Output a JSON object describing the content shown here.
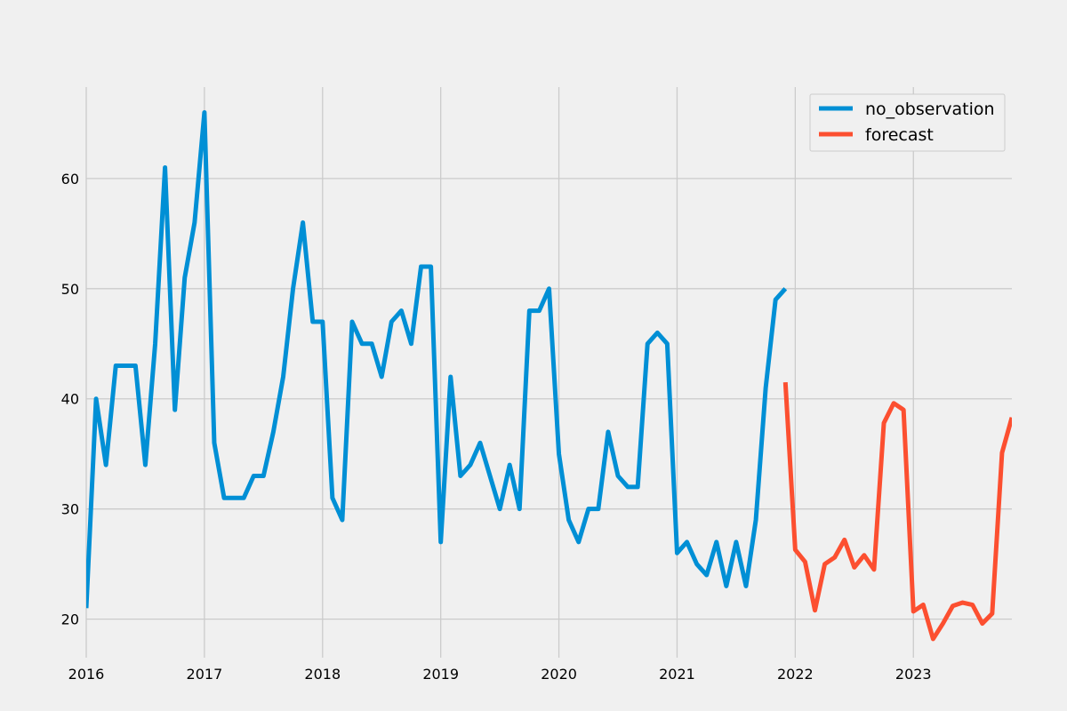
{
  "chart_data": {
    "type": "line",
    "title": "",
    "xlabel": "",
    "ylabel": "",
    "x_axis": {
      "type": "date",
      "range": [
        "2016-01",
        "2023-11"
      ],
      "ticks": [
        "2016",
        "2017",
        "2018",
        "2019",
        "2020",
        "2021",
        "2022",
        "2023"
      ]
    },
    "y_axis": {
      "range": [
        16.5,
        68.3
      ],
      "ticks": [
        20,
        30,
        40,
        50,
        60
      ]
    },
    "grid": true,
    "legend": {
      "position": "top-right",
      "entries": [
        "no_observation",
        "forecast"
      ]
    },
    "series": [
      {
        "name": "no_observation",
        "color": "#008fd5",
        "x": [
          "2016-01",
          "2016-02",
          "2016-03",
          "2016-04",
          "2016-05",
          "2016-06",
          "2016-07",
          "2016-08",
          "2016-09",
          "2016-10",
          "2016-11",
          "2016-12",
          "2017-01",
          "2017-02",
          "2017-03",
          "2017-04",
          "2017-05",
          "2017-06",
          "2017-07",
          "2017-08",
          "2017-09",
          "2017-10",
          "2017-11",
          "2017-12",
          "2018-01",
          "2018-02",
          "2018-03",
          "2018-04",
          "2018-05",
          "2018-06",
          "2018-07",
          "2018-08",
          "2018-09",
          "2018-10",
          "2018-11",
          "2018-12",
          "2019-01",
          "2019-02",
          "2019-03",
          "2019-04",
          "2019-05",
          "2019-06",
          "2019-07",
          "2019-08",
          "2019-09",
          "2019-10",
          "2019-11",
          "2019-12",
          "2020-01",
          "2020-02",
          "2020-03",
          "2020-04",
          "2020-05",
          "2020-06",
          "2020-07",
          "2020-08",
          "2020-09",
          "2020-10",
          "2020-11",
          "2020-12",
          "2021-01",
          "2021-02",
          "2021-03",
          "2021-04",
          "2021-05",
          "2021-06",
          "2021-07",
          "2021-08",
          "2021-09",
          "2021-10",
          "2021-11",
          "2021-12"
        ],
        "values": [
          21,
          40,
          34,
          43,
          43,
          43,
          34,
          45,
          61,
          39,
          51,
          56,
          66,
          36,
          31,
          31,
          31,
          33,
          33,
          37,
          42,
          50,
          56,
          47,
          47,
          31,
          29,
          47,
          45,
          45,
          42,
          47,
          48,
          45,
          52,
          52,
          27,
          42,
          33,
          34,
          36,
          33,
          30,
          34,
          30,
          48,
          48,
          50,
          35,
          29,
          27,
          30,
          30,
          37,
          33,
          32,
          32,
          45,
          46,
          45,
          26,
          27,
          25,
          24,
          27,
          23,
          27,
          23,
          29,
          41,
          49,
          50
        ]
      },
      {
        "name": "forecast",
        "color": "#fc4f30",
        "x": [
          "2021-12",
          "2022-01",
          "2022-02",
          "2022-03",
          "2022-04",
          "2022-05",
          "2022-06",
          "2022-07",
          "2022-08",
          "2022-09",
          "2022-10",
          "2022-11",
          "2022-12",
          "2023-01",
          "2023-02",
          "2023-03",
          "2023-04",
          "2023-05",
          "2023-06",
          "2023-07",
          "2023-08",
          "2023-09",
          "2023-10",
          "2023-11"
        ],
        "values": [
          41.5,
          26.3,
          25.2,
          20.8,
          25,
          25.6,
          27.2,
          24.7,
          25.8,
          24.5,
          37.8,
          39.6,
          39,
          20.7,
          21.3,
          18.2,
          19.6,
          21.2,
          21.5,
          21.3,
          19.6,
          20.5,
          35.1,
          38.3
        ]
      }
    ]
  }
}
